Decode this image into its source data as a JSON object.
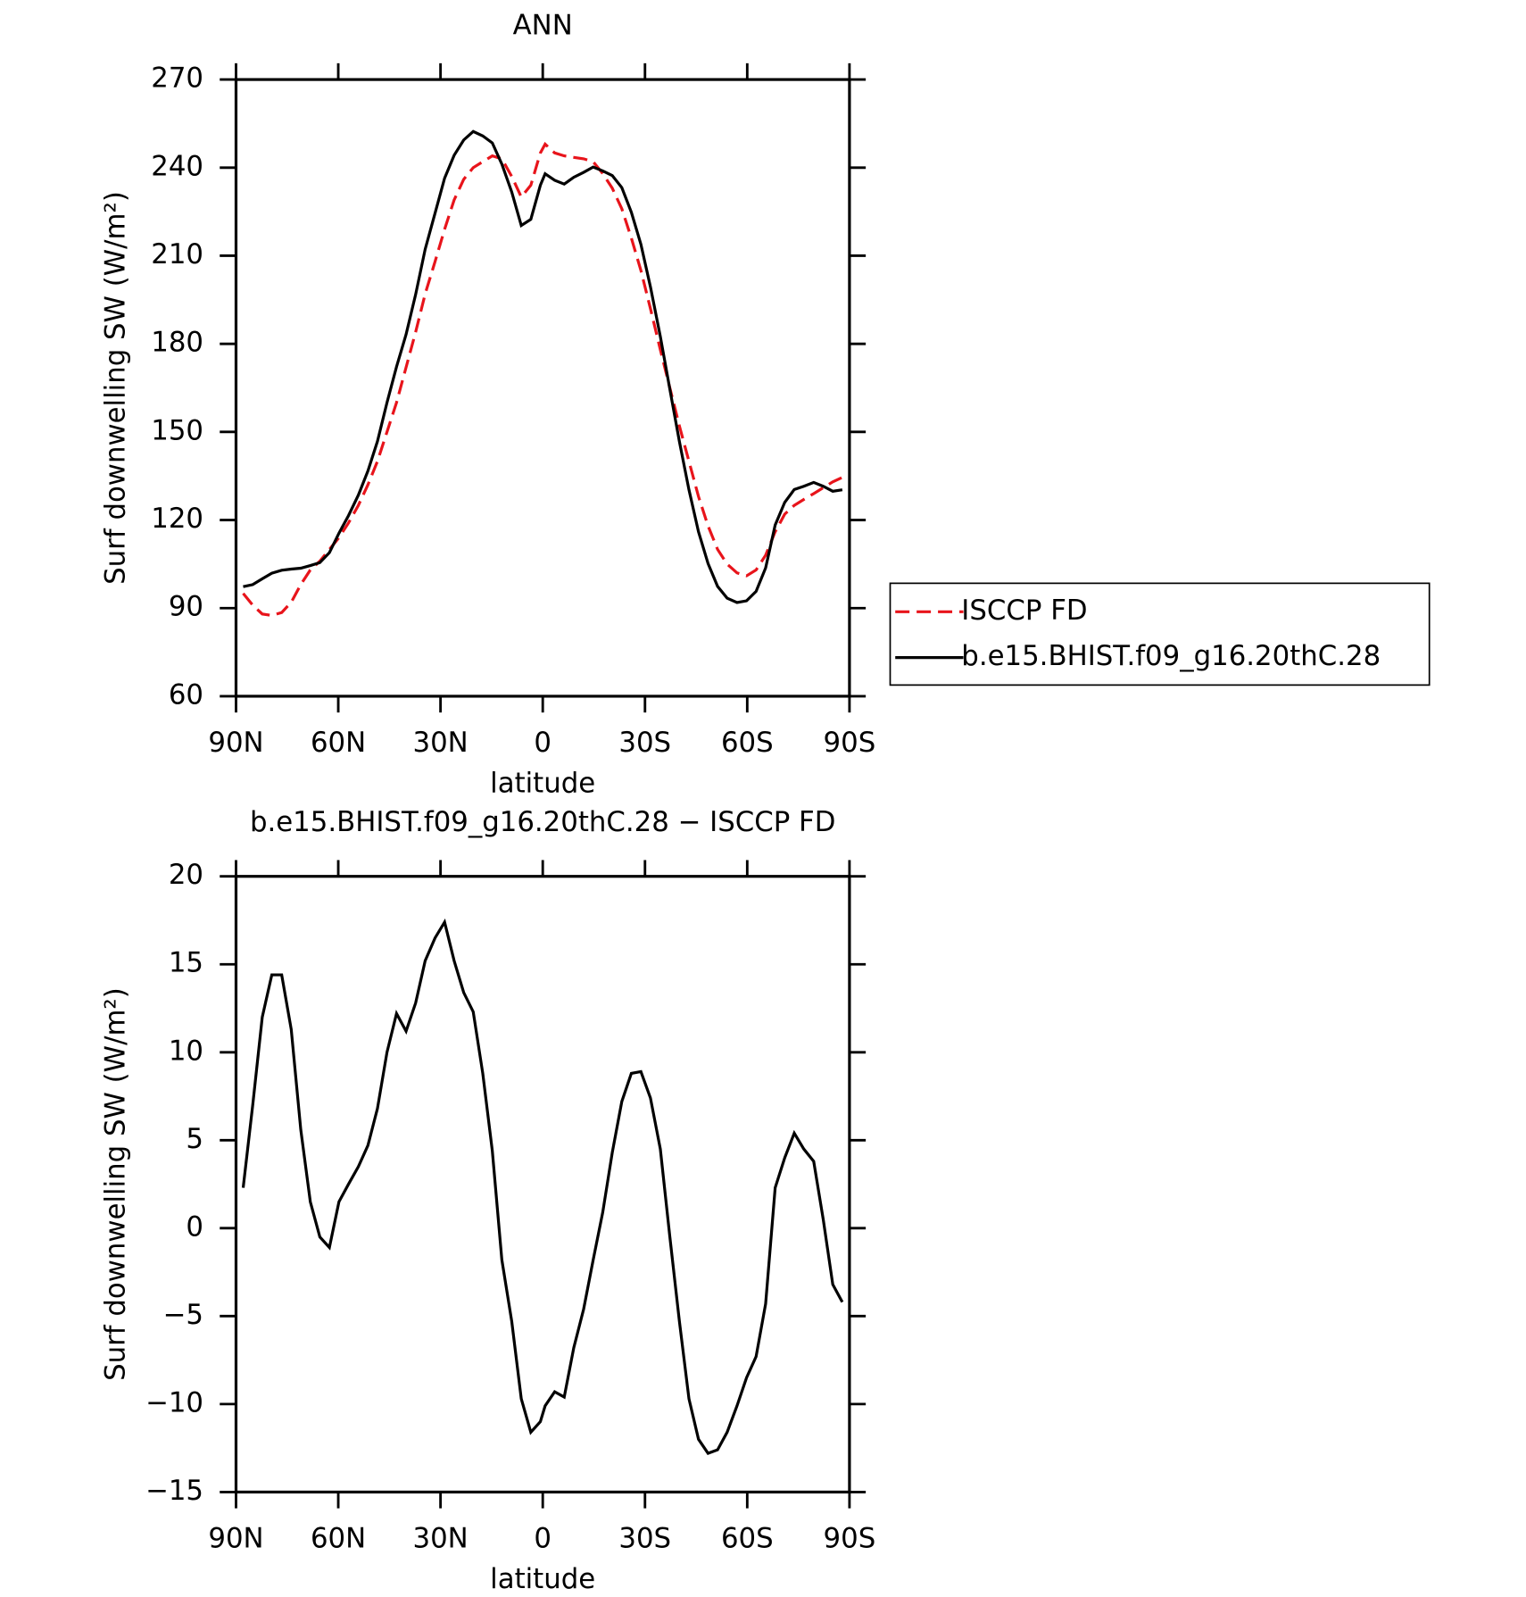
{
  "chart_data": [
    {
      "type": "line",
      "title": "ANN",
      "xlabel": "latitude",
      "ylabel": "Surf downwelling SW (W/m²)",
      "x": [
        87.9,
        85.1,
        82.3,
        79.5,
        76.6,
        73.8,
        71.0,
        68.2,
        65.4,
        62.6,
        59.8,
        57.0,
        54.1,
        51.3,
        48.5,
        45.7,
        42.9,
        40.1,
        37.3,
        34.5,
        31.6,
        28.8,
        26.0,
        23.2,
        20.4,
        17.6,
        14.8,
        12.0,
        9.1,
        6.3,
        3.5,
        0.7,
        -0.7,
        -3.5,
        -6.3,
        -9.1,
        -12.0,
        -14.8,
        -17.6,
        -20.4,
        -23.2,
        -26.0,
        -28.8,
        -31.6,
        -34.5,
        -37.3,
        -40.1,
        -42.9,
        -45.7,
        -48.5,
        -51.3,
        -54.1,
        -57.0,
        -59.8,
        -62.6,
        -65.4,
        -68.2,
        -71.0,
        -73.8,
        -76.6,
        -79.5,
        -82.3,
        -85.1,
        -87.9
      ],
      "series": [
        {
          "name": "ISCCP FD",
          "color": "#e8141b",
          "linestyle": "dashed",
          "values": [
            95,
            91,
            88,
            87.5,
            88.5,
            92,
            98,
            103,
            106,
            110,
            114,
            119,
            125,
            132,
            140,
            150,
            160,
            172,
            184,
            197,
            208,
            219,
            229,
            236,
            240,
            242,
            244,
            243,
            237,
            230,
            234,
            245,
            248,
            245,
            244,
            243.5,
            243,
            242,
            238,
            233,
            226,
            216,
            205,
            192,
            178,
            165,
            152,
            140,
            128,
            118,
            110,
            105,
            102,
            101,
            103,
            108,
            116,
            122,
            125,
            127,
            129,
            131,
            133,
            134.5
          ]
        },
        {
          "name": "b.e15.BHIST.f09_g16.20thC.28",
          "color": "#000000",
          "linestyle": "solid",
          "values": [
            97.3,
            98,
            100,
            101.9,
            102.9,
            103.3,
            103.6,
            104.5,
            105.5,
            108.9,
            115.5,
            121.5,
            128.5,
            136.7,
            146.8,
            160,
            172.2,
            183.2,
            196.8,
            212.2,
            224.5,
            236.4,
            244.2,
            249.4,
            252.3,
            250.8,
            248.4,
            241.2,
            231.7,
            220.3,
            222.4,
            234,
            237.9,
            235.7,
            234.4,
            236.7,
            238.4,
            240.2,
            238.9,
            237.3,
            233.2,
            224.8,
            213.9,
            199.4,
            182.5,
            164.5,
            146.7,
            130.3,
            116,
            105.2,
            97.4,
            93.4,
            91.9,
            92.5,
            95.7,
            103.7,
            118.3,
            126,
            130.4,
            131.5,
            132.8,
            131.5,
            129.8,
            130.3
          ]
        }
      ],
      "xlim": [
        90,
        -90
      ],
      "xticks": [
        {
          "value": 90,
          "label": "90N"
        },
        {
          "value": 60,
          "label": "60N"
        },
        {
          "value": 30,
          "label": "30N"
        },
        0,
        {
          "value": -30,
          "label": "30S"
        },
        {
          "value": -60,
          "label": "60S"
        },
        {
          "value": -90,
          "label": "90S"
        }
      ],
      "ylim": [
        60,
        270
      ],
      "yticks": [
        60,
        90,
        120,
        150,
        180,
        210,
        240,
        270
      ],
      "legend": "right"
    },
    {
      "type": "line",
      "title": "b.e15.BHIST.f09_g16.20thC.28 − ISCCP FD",
      "xlabel": "latitude",
      "ylabel": "Surf downwelling SW (W/m²)",
      "x": [
        87.9,
        85.1,
        82.3,
        79.5,
        76.6,
        73.8,
        71.0,
        68.2,
        65.4,
        62.6,
        59.8,
        57.0,
        54.1,
        51.3,
        48.5,
        45.7,
        42.9,
        40.1,
        37.3,
        34.5,
        31.6,
        28.8,
        26.0,
        23.2,
        20.4,
        17.6,
        14.8,
        12.0,
        9.1,
        6.3,
        3.5,
        0.7,
        -0.7,
        -3.5,
        -6.3,
        -9.1,
        -12.0,
        -14.8,
        -17.6,
        -20.4,
        -23.2,
        -26.0,
        -28.8,
        -31.6,
        -34.5,
        -37.3,
        -40.1,
        -42.9,
        -45.7,
        -48.5,
        -51.3,
        -54.1,
        -57.0,
        -59.8,
        -62.6,
        -65.4,
        -68.2,
        -71.0,
        -73.8,
        -76.6,
        -79.5,
        -82.3,
        -85.1,
        -87.9
      ],
      "series": [
        {
          "color": "#000000",
          "linestyle": "solid",
          "values": [
            2.3,
            7,
            12,
            14.4,
            14.4,
            11.3,
            5.6,
            1.5,
            -0.5,
            -1.1,
            1.5,
            2.5,
            3.5,
            4.7,
            6.8,
            10,
            12.2,
            11.2,
            12.8,
            15.2,
            16.5,
            17.4,
            15.2,
            13.4,
            12.3,
            8.8,
            4.4,
            -1.8,
            -5.3,
            -9.7,
            -11.6,
            -11.0,
            -10.1,
            -9.3,
            -9.6,
            -6.8,
            -4.6,
            -1.8,
            0.9,
            4.3,
            7.2,
            8.8,
            8.9,
            7.4,
            4.5,
            -0.5,
            -5.3,
            -9.7,
            -12.0,
            -12.8,
            -12.6,
            -11.6,
            -10.1,
            -8.5,
            -7.3,
            -4.3,
            2.3,
            4.0,
            5.4,
            4.5,
            3.8,
            0.5,
            -3.2,
            -4.2
          ]
        }
      ],
      "xlim": [
        90,
        -90
      ],
      "xticks": [
        {
          "value": 90,
          "label": "90N"
        },
        {
          "value": 60,
          "label": "60N"
        },
        {
          "value": 30,
          "label": "30N"
        },
        0,
        {
          "value": -30,
          "label": "30S"
        },
        {
          "value": -60,
          "label": "60S"
        },
        {
          "value": -90,
          "label": "90S"
        }
      ],
      "ylim": [
        -15,
        20
      ],
      "yticks": [
        {
          "value": -15,
          "label": "−15"
        },
        {
          "value": -10,
          "label": "−10"
        },
        {
          "value": -5,
          "label": "−5"
        },
        0,
        5,
        10,
        15,
        20
      ]
    }
  ]
}
